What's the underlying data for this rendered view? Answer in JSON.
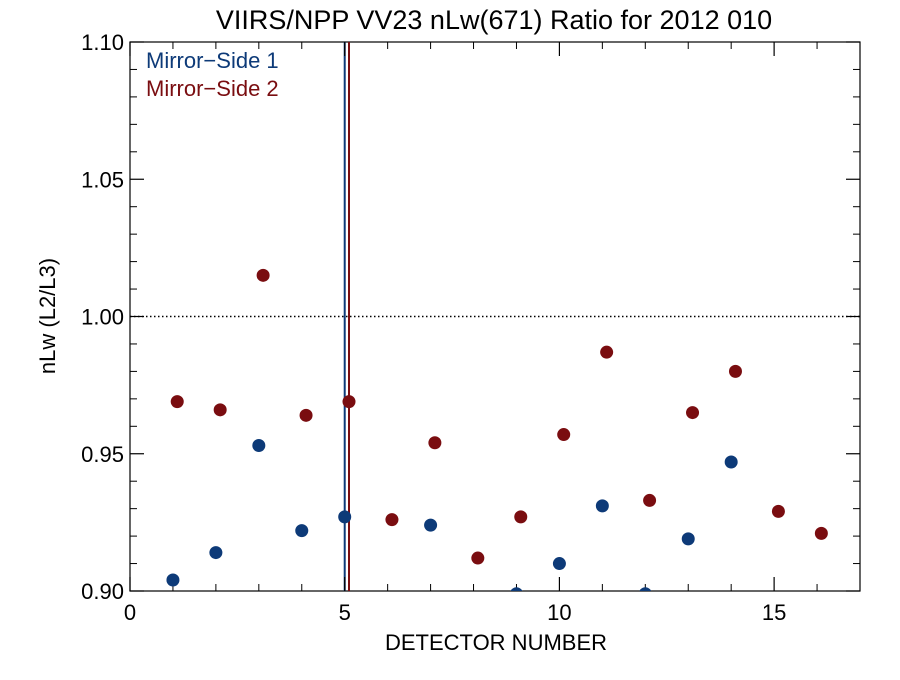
{
  "chart_data": {
    "type": "scatter",
    "title": "VIIRS/NPP VV23 nLw(671) Ratio for 2012 010",
    "xlabel": "DETECTOR NUMBER",
    "ylabel": "nLw (L2/L3)",
    "xlim": [
      0,
      17
    ],
    "ylim": [
      0.9,
      1.1
    ],
    "xticks": [
      0,
      5,
      10,
      15
    ],
    "xtick_labels": [
      "0",
      "5",
      "10",
      "15"
    ],
    "yticks": [
      0.9,
      0.95,
      1.0,
      1.05,
      1.1
    ],
    "ytick_labels": [
      "0.90",
      "0.95",
      "1.00",
      "1.05",
      "1.10"
    ],
    "grid": false,
    "legend_position": "top-left",
    "reference_line": {
      "y": 1.0,
      "style": "dotted"
    },
    "series": [
      {
        "name": "Mirror−Side 1",
        "color": "#0d3a78",
        "x": [
          1,
          2,
          3,
          4,
          5,
          7,
          9,
          10,
          11,
          12,
          13,
          14
        ],
        "y": [
          0.904,
          0.914,
          0.953,
          0.922,
          0.927,
          0.924,
          0.899,
          0.91,
          0.931,
          0.899,
          0.919,
          0.947
        ],
        "marker_line_x": 5
      },
      {
        "name": "Mirror−Side 2",
        "color": "#7a0d10",
        "x": [
          1.1,
          2.1,
          3.1,
          4.1,
          5.1,
          6.1,
          7.1,
          8.1,
          9.1,
          10.1,
          11.1,
          12.1,
          13.1,
          14.1,
          15.1,
          16.1
        ],
        "y": [
          0.969,
          0.966,
          1.015,
          0.964,
          0.969,
          0.926,
          0.954,
          0.912,
          0.927,
          0.957,
          0.987,
          0.933,
          0.965,
          0.98,
          0.929,
          0.921
        ],
        "marker_line_x": 5.1
      }
    ]
  }
}
